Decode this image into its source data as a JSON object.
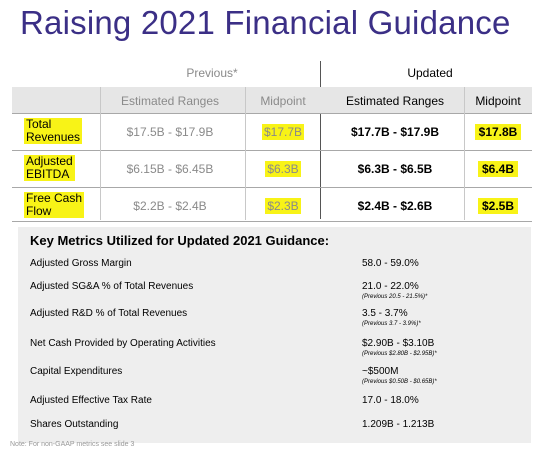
{
  "title": "Raising 2021 Financial Guidance",
  "table": {
    "previous_group": "Previous*",
    "updated_group": "Updated",
    "col_headers": {
      "prev_ranges": "Estimated Ranges",
      "prev_mid": "Midpoint",
      "upd_ranges": "Estimated Ranges",
      "upd_mid": "Midpoint"
    },
    "rows": [
      {
        "label_line1": "Total",
        "label_line2": "Revenues",
        "prev_range": "$17.5B - $17.9B",
        "prev_mid": "$17.7B",
        "upd_range": "$17.7B - $17.9B",
        "upd_mid": "$17.8B"
      },
      {
        "label_line1": "Adjusted",
        "label_line2": "EBITDA",
        "prev_range": "$6.15B - $6.45B",
        "prev_mid": "$6.3B",
        "upd_range": "$6.3B - $6.5B",
        "upd_mid": "$6.4B"
      },
      {
        "label_line1": "Free Cash",
        "label_line2": "Flow",
        "prev_range": "$2.2B - $2.4B",
        "prev_mid": "$2.3B",
        "upd_range": "$2.4B - $2.6B",
        "upd_mid": "$2.5B"
      }
    ]
  },
  "metrics": {
    "title": "Key Metrics Utilized for Updated 2021 Guidance:",
    "items": [
      {
        "name": "Adjusted Gross Margin",
        "value": "58.0 - 59.0%",
        "prev": ""
      },
      {
        "name": "Adjusted SG&A % of Total Revenues",
        "value": "21.0 - 22.0%",
        "prev": "(Previous 20.5 - 21.5%)*"
      },
      {
        "name": "Adjusted R&D % of Total Revenues",
        "value": "3.5 - 3.7%",
        "prev": "(Previous 3.7 - 3.9%)*"
      },
      {
        "name": "Net Cash Provided by Operating Activities",
        "value": "$2.90B - $3.10B",
        "prev": "(Previous $2.80B - $2.95B)*"
      },
      {
        "name": "Capital Expenditures",
        "value": "~$500M",
        "prev": "(Previous $0.50B - $0.65B)*"
      },
      {
        "name": "Adjusted Effective Tax Rate",
        "value": "17.0 - 18.0%",
        "prev": ""
      },
      {
        "name": "Shares Outstanding",
        "value": "1.209B - 1.213B",
        "prev": ""
      }
    ]
  },
  "note": "Note: For non-GAAP metrics see slide 3"
}
